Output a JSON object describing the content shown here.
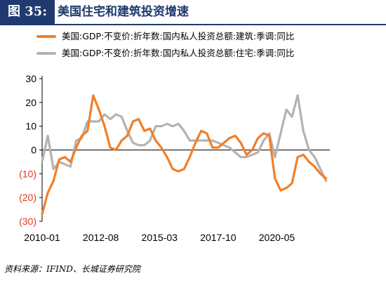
{
  "header": {
    "tag": "图 35:",
    "title": "美国住宅和建筑投资增速"
  },
  "source": "资料来源：IFIND、长城证券研究院",
  "colors": {
    "construction": "#f07f2a",
    "residential": "#b3b3b3",
    "negative_tick": "#e03a1e",
    "title_bar": "#1f3a6e"
  },
  "chart_data": {
    "type": "line",
    "x_tick_labels": [
      "2010-01",
      "2012-08",
      "2015-03",
      "2017-10",
      "2020-05"
    ],
    "y_ticks": [
      30,
      20,
      10,
      0,
      -10,
      -20,
      -30
    ],
    "y_tick_labels": [
      "30",
      "20",
      "10",
      "0",
      "(10)",
      "(20)",
      "(30)"
    ],
    "ylim": [
      -30,
      30
    ],
    "x_range": [
      "2010-01",
      "2022-09"
    ],
    "grid": false,
    "legend_position": "top-left",
    "series": [
      {
        "name": "美国:GDP:不变价:折年数:国内私人投资总额:建筑:季调:同比",
        "color": "#f07f2a",
        "points": [
          [
            "2010-01",
            -27
          ],
          [
            "2010-04",
            -18
          ],
          [
            "2010-07",
            -13
          ],
          [
            "2010-10",
            -4
          ],
          [
            "2011-01",
            -3
          ],
          [
            "2011-04",
            -5
          ],
          [
            "2011-07",
            1
          ],
          [
            "2011-10",
            6
          ],
          [
            "2012-01",
            8
          ],
          [
            "2012-04",
            23
          ],
          [
            "2012-07",
            17
          ],
          [
            "2012-10",
            10
          ],
          [
            "2013-01",
            1
          ],
          [
            "2013-04",
            0
          ],
          [
            "2013-07",
            4
          ],
          [
            "2013-10",
            6
          ],
          [
            "2014-01",
            12
          ],
          [
            "2014-04",
            13
          ],
          [
            "2014-07",
            8
          ],
          [
            "2014-10",
            9
          ],
          [
            "2015-01",
            4
          ],
          [
            "2015-04",
            1
          ],
          [
            "2015-07",
            -3
          ],
          [
            "2015-10",
            -8
          ],
          [
            "2016-01",
            -9
          ],
          [
            "2016-04",
            -8
          ],
          [
            "2016-07",
            -3
          ],
          [
            "2016-10",
            3
          ],
          [
            "2017-01",
            8
          ],
          [
            "2017-04",
            7
          ],
          [
            "2017-07",
            1
          ],
          [
            "2017-10",
            1
          ],
          [
            "2018-01",
            3
          ],
          [
            "2018-04",
            5
          ],
          [
            "2018-07",
            6
          ],
          [
            "2018-10",
            3
          ],
          [
            "2019-01",
            -2
          ],
          [
            "2019-04",
            0
          ],
          [
            "2019-07",
            5
          ],
          [
            "2019-10",
            7
          ],
          [
            "2020-01",
            6
          ],
          [
            "2020-04",
            -12
          ],
          [
            "2020-07",
            -17
          ],
          [
            "2020-10",
            -16
          ],
          [
            "2021-01",
            -14
          ],
          [
            "2021-04",
            -3
          ],
          [
            "2021-07",
            -2
          ],
          [
            "2021-10",
            -5
          ],
          [
            "2022-01",
            -7
          ],
          [
            "2022-04",
            -10
          ],
          [
            "2022-07",
            -12
          ]
        ]
      },
      {
        "name": "美国:GDP:不变价:折年数:国内私人投资总额:住宅:季调:同比",
        "color": "#b3b3b3",
        "points": [
          [
            "2010-01",
            -5
          ],
          [
            "2010-04",
            6
          ],
          [
            "2010-07",
            -8
          ],
          [
            "2010-10",
            -5
          ],
          [
            "2011-01",
            -6
          ],
          [
            "2011-04",
            -7
          ],
          [
            "2011-07",
            4
          ],
          [
            "2011-10",
            5
          ],
          [
            "2012-01",
            12
          ],
          [
            "2012-04",
            12
          ],
          [
            "2012-07",
            12
          ],
          [
            "2012-10",
            15
          ],
          [
            "2013-01",
            13
          ],
          [
            "2013-04",
            15
          ],
          [
            "2013-07",
            14
          ],
          [
            "2013-10",
            8
          ],
          [
            "2014-01",
            3
          ],
          [
            "2014-04",
            2
          ],
          [
            "2014-07",
            2
          ],
          [
            "2014-10",
            4
          ],
          [
            "2015-01",
            10
          ],
          [
            "2015-04",
            10
          ],
          [
            "2015-07",
            11
          ],
          [
            "2015-10",
            10
          ],
          [
            "2016-01",
            11
          ],
          [
            "2016-04",
            8
          ],
          [
            "2016-07",
            4
          ],
          [
            "2016-10",
            4
          ],
          [
            "2017-01",
            4
          ],
          [
            "2017-04",
            4
          ],
          [
            "2017-07",
            4
          ],
          [
            "2017-10",
            3
          ],
          [
            "2018-01",
            2
          ],
          [
            "2018-04",
            1
          ],
          [
            "2018-07",
            -1
          ],
          [
            "2018-10",
            -3
          ],
          [
            "2019-01",
            -3
          ],
          [
            "2019-04",
            -2
          ],
          [
            "2019-07",
            -1
          ],
          [
            "2019-10",
            4
          ],
          [
            "2020-01",
            7
          ],
          [
            "2020-04",
            -3
          ],
          [
            "2020-07",
            7
          ],
          [
            "2020-10",
            17
          ],
          [
            "2021-01",
            14
          ],
          [
            "2021-04",
            23
          ],
          [
            "2021-07",
            8
          ],
          [
            "2021-10",
            0
          ],
          [
            "2022-01",
            -3
          ],
          [
            "2022-04",
            -8
          ],
          [
            "2022-07",
            -13
          ]
        ]
      }
    ]
  }
}
